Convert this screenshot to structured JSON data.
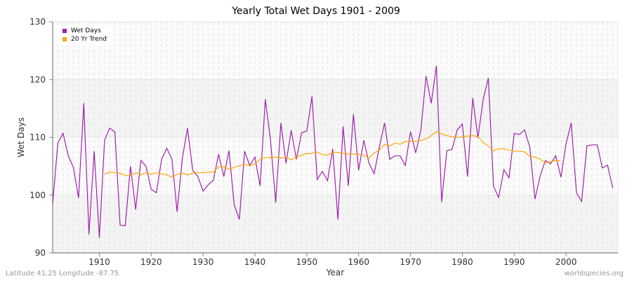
{
  "chart_data": {
    "type": "line",
    "title": "Yearly Total Wet Days 1901 - 2009",
    "xlabel": "Year",
    "ylabel": "Wet Days",
    "xlim": [
      1901,
      2010
    ],
    "ylim": [
      90,
      130
    ],
    "xticks": [
      1910,
      1920,
      1930,
      1940,
      1950,
      1960,
      1970,
      1980,
      1990,
      2000
    ],
    "yticks": [
      90,
      100,
      110,
      120,
      130
    ],
    "grid": true,
    "legend_position": "top-left",
    "series": [
      {
        "name": "Wet Days",
        "color": "#a020b0",
        "x_start": 1901,
        "values": [
          98.5,
          109,
          110.7,
          106.8,
          104.8,
          99.5,
          115.9,
          93.2,
          107.6,
          92.6,
          109.5,
          111.6,
          110.9,
          94.8,
          94.7,
          105,
          97.5,
          106,
          105,
          101,
          100.4,
          106.2,
          108.1,
          106.2,
          97.1,
          106.3,
          111.6,
          104.3,
          103.2,
          100.7,
          101.8,
          102.6,
          107.1,
          103.2,
          107.7,
          98.3,
          95.8,
          107.6,
          105.1,
          106.6,
          101.6,
          116.6,
          109.5,
          98.7,
          112.5,
          105.5,
          111.2,
          106.2,
          110.8,
          111.1,
          117.1,
          102.7,
          104.1,
          102.5,
          108,
          95.8,
          111.9,
          101.6,
          114,
          104.3,
          109.5,
          105.5,
          103.7,
          108.4,
          112.5,
          106.2,
          106.8,
          106.8,
          105.1,
          111,
          107.3,
          111.3,
          120.6,
          115.9,
          122.4,
          98.8,
          107.7,
          107.9,
          111.3,
          112.3,
          103.2,
          116.8,
          109.9,
          116.5,
          120.3,
          101.5,
          99.6,
          104.4,
          103,
          110.7,
          110.5,
          111.3,
          108.3,
          99.3,
          103.3,
          106,
          105.4,
          106.8,
          103.1,
          108.9,
          112.5,
          100.4,
          98.9,
          108.5,
          108.7,
          108.7,
          104.7,
          105.2,
          101.2
        ]
      },
      {
        "name": "20 Yr Trend",
        "color": "#ffa500",
        "x_start": 1911,
        "values": [
          103.6,
          104.0,
          103.9,
          103.8,
          103.4,
          103.4,
          103.9,
          103.5,
          103.9,
          103.6,
          103.9,
          103.7,
          103.5,
          103.1,
          103.6,
          103.8,
          103.5,
          103.8,
          103.9,
          103.9,
          104.0,
          104.0,
          104.9,
          104.9,
          104.5,
          104.8,
          105.1,
          105.3,
          105.1,
          105.4,
          106.2,
          106.5,
          106.5,
          106.6,
          106.4,
          106.6,
          106.1,
          106.6,
          106.9,
          107.2,
          107.2,
          107.5,
          107.0,
          106.9,
          107.4,
          107.4,
          107.2,
          107.1,
          107.1,
          107.1,
          106.9,
          106.4,
          107.3,
          107.8,
          108.8,
          108.5,
          109.0,
          108.8,
          109.3,
          109.3,
          109.3,
          109.5,
          109.7,
          110.3,
          111.0,
          110.6,
          110.3,
          110.1,
          110.0,
          110.1,
          110.2,
          110.3,
          110.1,
          109.1,
          108.5,
          107.7,
          108.0,
          108.0,
          107.8,
          107.6,
          107.6,
          107.5,
          106.7,
          106.6,
          106.2,
          105.6,
          105.8,
          106.0,
          105.9
        ]
      }
    ]
  },
  "footer": {
    "location": "Latitude 41.25 Longitude -87.75",
    "source": "worldspecies.org"
  }
}
